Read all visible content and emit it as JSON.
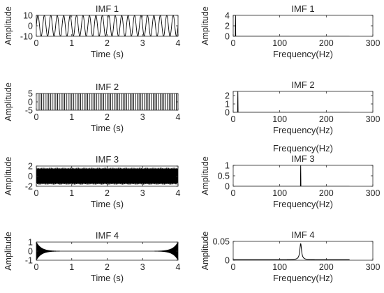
{
  "chart_data": [
    {
      "type": "line",
      "title": "IMF 1",
      "xlabel": "Time (s)",
      "ylabel": "Amplitude",
      "xlim": [
        0,
        4
      ],
      "ylim": [
        -10,
        10
      ],
      "xticks": [
        "0",
        "1",
        "2",
        "3",
        "4"
      ],
      "yticks": [
        "10",
        "0",
        "-10"
      ],
      "signal": {
        "kind": "sine",
        "amplitude": 10,
        "frequency_hz": 5.5,
        "duration_s": 4
      }
    },
    {
      "type": "line",
      "title": "IMF 1",
      "xlabel": "Frequency(Hz)",
      "ylabel": "Amplitude",
      "xlim": [
        0,
        300
      ],
      "ylim": [
        0,
        4
      ],
      "xticks": [
        "0",
        "100",
        "200",
        "300"
      ],
      "yticks": [
        "4",
        "2",
        "0"
      ],
      "spectrum": {
        "peak_hz": 5,
        "peak_amplitude": 4,
        "extent_hz": 250
      }
    },
    {
      "type": "line",
      "title": "IMF 2",
      "xlabel": "Time (s)",
      "ylabel": "Amplitude",
      "xlim": [
        0,
        4
      ],
      "ylim": [
        -5,
        5
      ],
      "xticks": [
        "0",
        "1",
        "2",
        "3",
        "4"
      ],
      "yticks": [
        "5",
        "0",
        "-5"
      ],
      "signal": {
        "kind": "square",
        "amplitude": 5,
        "frequency_hz": 10,
        "duration_s": 4
      }
    },
    {
      "type": "line",
      "title": "IMF 2",
      "xlabel": "Frequency(Hz)",
      "ylabel": "",
      "xlim": [
        0,
        300
      ],
      "ylim": [
        0,
        2.5
      ],
      "xticks": [
        "0",
        "100",
        "200",
        "300"
      ],
      "yticks": [
        "2",
        "1",
        "0"
      ],
      "spectrum": {
        "peak_hz": 10,
        "peak_amplitude": 2.5,
        "extent_hz": 250
      }
    },
    {
      "type": "line",
      "title": "IMF 3",
      "xlabel": "Time (s)",
      "ylabel": "Amplitude",
      "xlim": [
        0,
        4
      ],
      "ylim": [
        -2,
        2
      ],
      "xticks": [
        "0",
        "1",
        "2",
        "3",
        "4"
      ],
      "yticks": [
        "2",
        "0",
        "-2"
      ],
      "signal": {
        "kind": "dense",
        "amplitude": 1.5,
        "frequency_hz": 145,
        "duration_s": 4
      }
    },
    {
      "type": "line",
      "title": "IMF 3",
      "xlabel": "Frequency(Hz)",
      "ylabel": "Amplitude",
      "extra_label": "Frequency(Hz)",
      "xlim": [
        0,
        300
      ],
      "ylim": [
        0,
        1
      ],
      "xticks": [
        "0",
        "100",
        "200",
        "300"
      ],
      "yticks": [
        "1",
        "0.5",
        "0"
      ],
      "spectrum": {
        "peak_hz": 145,
        "peak_amplitude": 1,
        "extent_hz": 250
      }
    },
    {
      "type": "line",
      "title": "IMF 4",
      "xlabel": "Time (s)",
      "ylabel": "Amplitude",
      "xlim": [
        0,
        4
      ],
      "ylim": [
        -1,
        1
      ],
      "xticks": [
        "0",
        "1",
        "2",
        "3",
        "4"
      ],
      "yticks": [
        "1",
        "0",
        "-1"
      ],
      "signal": {
        "kind": "edge-burst",
        "amplitude": 1,
        "frequency_hz": 145,
        "duration_s": 4
      }
    },
    {
      "type": "line",
      "title": "IMF 4",
      "xlabel": "Frequency(Hz)",
      "ylabel": "Amplitude",
      "xlim": [
        0,
        300
      ],
      "ylim": [
        0,
        0.05
      ],
      "xticks": [
        "0",
        "100",
        "200",
        "300"
      ],
      "yticks": [
        "0.05",
        "0"
      ],
      "spectrum": {
        "peak_hz": 145,
        "peak_amplitude": 0.043,
        "extent_hz": 250,
        "shape": "resonance"
      }
    }
  ]
}
